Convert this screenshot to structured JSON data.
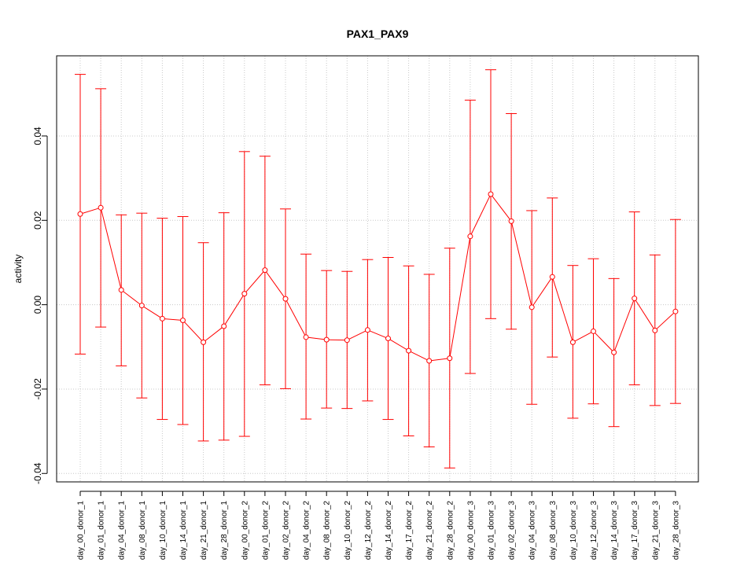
{
  "chart_data": {
    "type": "line",
    "title": "PAX1_PAX9",
    "xlabel": "",
    "ylabel": "activity",
    "ylim": [
      -0.042,
      0.059
    ],
    "yticks": [
      -0.04,
      -0.02,
      0.0,
      0.02,
      0.04
    ],
    "ytick_labels": [
      "-0.04",
      "-0.02",
      "0.00",
      "0.02",
      "0.04"
    ],
    "grid": true,
    "color": "#ff0000",
    "categories": [
      "day_00_donor_1",
      "day_01_donor_1",
      "day_04_donor_1",
      "day_08_donor_1",
      "day_10_donor_1",
      "day_14_donor_1",
      "day_21_donor_1",
      "day_28_donor_1",
      "day_00_donor_2",
      "day_01_donor_2",
      "day_02_donor_2",
      "day_04_donor_2",
      "day_08_donor_2",
      "day_10_donor_2",
      "day_12_donor_2",
      "day_14_donor_2",
      "day_17_donor_2",
      "day_21_donor_2",
      "day_28_donor_2",
      "day_00_donor_3",
      "day_01_donor_3",
      "day_02_donor_3",
      "day_04_donor_3",
      "day_08_donor_3",
      "day_10_donor_3",
      "day_12_donor_3",
      "day_14_donor_3",
      "day_17_donor_3",
      "day_21_donor_3",
      "day_28_donor_3"
    ],
    "values": [
      0.0215,
      0.023,
      0.0035,
      -0.0002,
      -0.0033,
      -0.0037,
      -0.0089,
      -0.0051,
      0.0026,
      0.0082,
      0.0014,
      -0.0077,
      -0.0083,
      -0.0084,
      -0.006,
      -0.008,
      -0.0109,
      -0.0133,
      -0.0127,
      0.0162,
      0.0262,
      0.0198,
      -0.0006,
      0.0066,
      -0.0089,
      -0.0063,
      -0.0113,
      0.0015,
      -0.0061,
      -0.0016
    ],
    "upper": [
      0.0546,
      0.0512,
      0.0213,
      0.0217,
      0.0205,
      0.0209,
      0.0147,
      0.0218,
      0.0363,
      0.0352,
      0.0227,
      0.012,
      0.0081,
      0.0079,
      0.0107,
      0.0112,
      0.0092,
      0.0072,
      0.0134,
      0.0485,
      0.0557,
      0.0453,
      0.0223,
      0.0253,
      0.0093,
      0.0109,
      0.0062,
      0.022,
      0.0118,
      0.0202
    ],
    "lower": [
      -0.0117,
      -0.0053,
      -0.0145,
      -0.0221,
      -0.0272,
      -0.0284,
      -0.0323,
      -0.0321,
      -0.0312,
      -0.019,
      -0.0199,
      -0.0271,
      -0.0245,
      -0.0246,
      -0.0228,
      -0.0272,
      -0.0311,
      -0.0337,
      -0.0387,
      -0.0163,
      -0.0033,
      -0.0058,
      -0.0236,
      -0.0124,
      -0.0269,
      -0.0235,
      -0.0289,
      -0.019,
      -0.0239,
      -0.0234
    ]
  }
}
